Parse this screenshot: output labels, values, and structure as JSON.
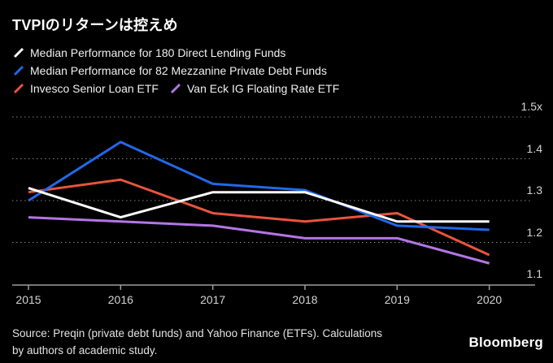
{
  "title": "TVPIのリターンは控えめ",
  "colors": {
    "background": "#000000",
    "axis": "#9c9c9c",
    "grid": "#858585",
    "tick_label": "#d4d4d4",
    "legend_text": "#f0f0f0"
  },
  "chart_data": {
    "type": "line",
    "x": [
      2015,
      2016,
      2017,
      2018,
      2019,
      2020
    ],
    "x_tick_labels": [
      "2015",
      "2016",
      "2017",
      "2018",
      "2019",
      "2020"
    ],
    "series": [
      {
        "name": "Median Performance for 180 Direct Lending Funds",
        "color": "#ffffff",
        "values": [
          1.33,
          1.26,
          1.32,
          1.32,
          1.25,
          1.25
        ]
      },
      {
        "name": "Median Performance for 82 Mezzanine Private Debt Funds",
        "color": "#2268e8",
        "values": [
          1.3,
          1.44,
          1.34,
          1.325,
          1.24,
          1.23
        ]
      },
      {
        "name": "Invesco Senior Loan ETF",
        "color": "#e8543d",
        "values": [
          1.32,
          1.35,
          1.27,
          1.25,
          1.27,
          1.17
        ]
      },
      {
        "name": "Van Eck IG Floating Rate ETF",
        "color": "#b475e6",
        "values": [
          1.26,
          1.25,
          1.24,
          1.21,
          1.21,
          1.15
        ]
      }
    ],
    "ylim": [
      1.1,
      1.5
    ],
    "y_ticks": [
      1.5,
      1.4,
      1.3,
      1.2,
      1.1
    ],
    "y_tick_labels": [
      "1.5x",
      "1.4",
      "1.3",
      "1.2",
      "1.1"
    ],
    "grid": "horizontal dotted",
    "legend_position": "top-left"
  },
  "source": {
    "line1": "Source: Preqin (private debt funds) and Yahoo Finance (ETFs). Calculations",
    "line2": "by authors of academic study."
  },
  "logo": "Bloomberg"
}
